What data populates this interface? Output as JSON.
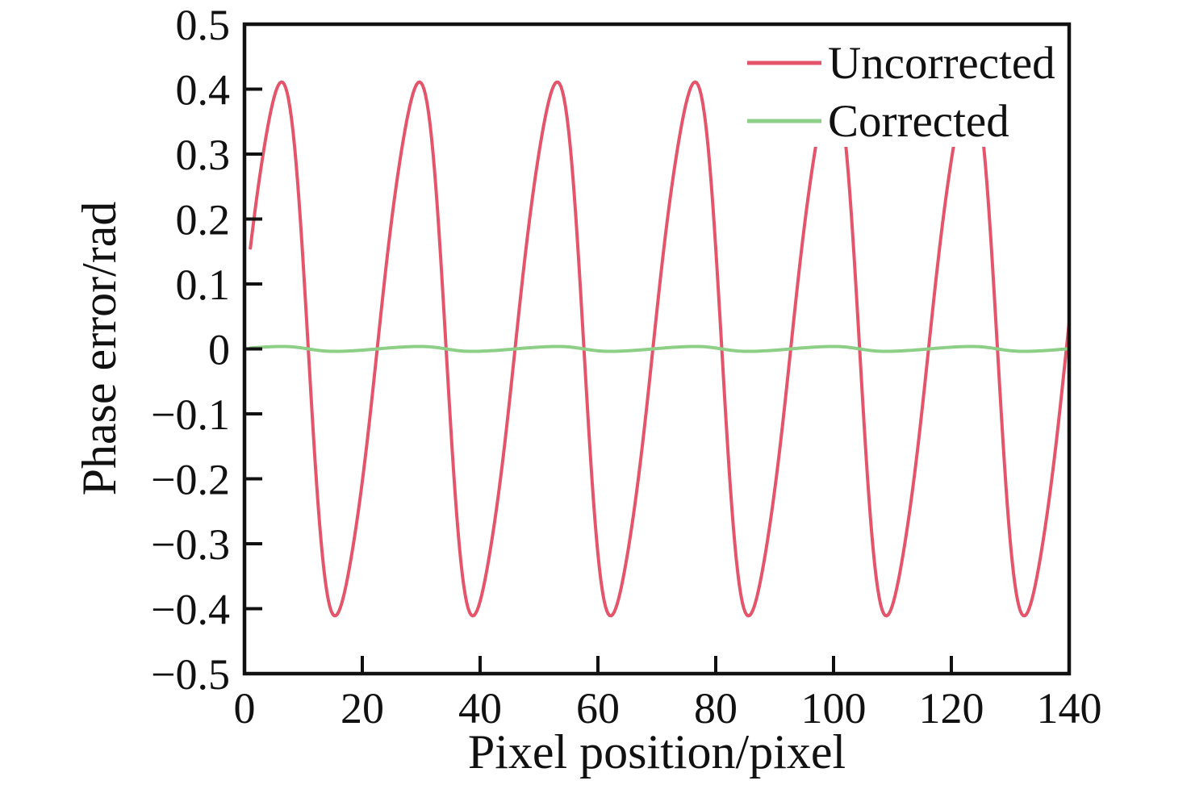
{
  "figure": {
    "background": "#ffffff",
    "axis_color": "#111111"
  },
  "chart_data": {
    "type": "line",
    "title": "",
    "xlabel": "Pixel position/pixel",
    "ylabel": "Phase error/rad",
    "xlim": [
      0,
      140
    ],
    "ylim": [
      -0.5,
      0.5
    ],
    "grid": false,
    "legend_position": "top-right",
    "xticks": {
      "values": [
        0,
        20,
        40,
        60,
        80,
        100,
        120,
        140
      ],
      "labels": [
        "0",
        "20",
        "40",
        "60",
        "80",
        "100",
        "120",
        "140"
      ]
    },
    "yticks": {
      "values": [
        -0.5,
        -0.4,
        -0.3,
        -0.2,
        -0.1,
        0,
        0.1,
        0.2,
        0.3,
        0.4,
        0.5
      ],
      "labels": [
        "−0.5",
        "−0.4",
        "−0.3",
        "−0.2",
        "−0.1",
        "0",
        "0.1",
        "0.2",
        "0.3",
        "0.4",
        "0.5"
      ]
    },
    "series": [
      {
        "name": "Uncorrected",
        "color": "#e4556b",
        "line_width": 4,
        "x_start": 1,
        "x_end": 140,
        "model": {
          "description": "y = amplitude * sum(a_k * sin(k * 2*pi*(x + x_shift)/period))",
          "amplitude": 0.402,
          "period": 23.4,
          "x_shift": 0.87,
          "harmonics": [
            [
              1,
              1.0
            ],
            [
              2,
              -0.16
            ],
            [
              3,
              0.04
            ]
          ]
        },
        "readings": {
          "peak_value": 0.41,
          "trough_value": -0.41,
          "peaks_x": [
            6.4,
            29.8,
            53.2,
            76.6,
            100.0,
            123.4
          ],
          "troughs_x": [
            15.3,
            38.7,
            62.1,
            85.5,
            108.9,
            132.3
          ],
          "value_at_x1": 0.16,
          "value_at_x140": 0.04
        }
      },
      {
        "name": "Corrected",
        "color": "#8ecf87",
        "line_width": 4,
        "x_start": 1,
        "x_end": 140,
        "model": {
          "description": "y = amplitude * sum(a_k * sin(k * 2*pi*(x + x_shift)/period))",
          "amplitude": 0.0037,
          "period": 23.4,
          "x_shift": 0.87,
          "harmonics": [
            [
              1,
              1.0
            ],
            [
              2,
              -0.16
            ],
            [
              3,
              0.04
            ]
          ]
        },
        "readings": {
          "peak_value": 0.004,
          "trough_value": -0.004
        }
      }
    ]
  }
}
